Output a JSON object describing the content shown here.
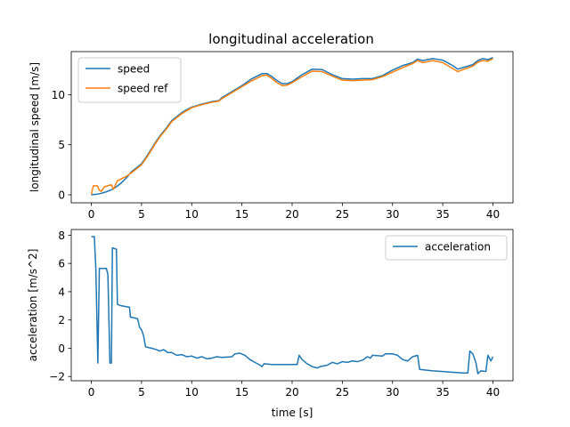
{
  "chart_data": [
    {
      "type": "line",
      "title": "longitudinal acceleration",
      "xlabel": "time [s]",
      "ylabel": "longitudinal speed [m/s]",
      "xlim": [
        -2,
        42
      ],
      "ylim": [
        -0.8,
        14.3
      ],
      "xticks": [
        0,
        5,
        10,
        15,
        20,
        25,
        30,
        35,
        40
      ],
      "yticks": [
        0,
        5,
        10
      ],
      "grid": false,
      "legend": "top-left",
      "series": [
        {
          "name": "speed",
          "color": "#1f77b4",
          "points": [
            [
              0,
              0
            ],
            [
              0.5,
              0.05
            ],
            [
              1,
              0.15
            ],
            [
              1.5,
              0.3
            ],
            [
              2,
              0.5
            ],
            [
              2.5,
              0.8
            ],
            [
              3,
              1.2
            ],
            [
              3.5,
              1.7
            ],
            [
              4,
              2.3
            ],
            [
              4.5,
              2.7
            ],
            [
              5,
              3.1
            ],
            [
              5.5,
              3.8
            ],
            [
              6,
              4.6
            ],
            [
              6.5,
              5.4
            ],
            [
              7,
              6.1
            ],
            [
              7.5,
              6.7
            ],
            [
              8,
              7.4
            ],
            [
              8.5,
              7.8
            ],
            [
              9,
              8.2
            ],
            [
              9.5,
              8.5
            ],
            [
              10,
              8.75
            ],
            [
              11,
              9.05
            ],
            [
              12,
              9.3
            ],
            [
              12.7,
              9.4
            ],
            [
              13,
              9.7
            ],
            [
              14,
              10.3
            ],
            [
              15,
              10.9
            ],
            [
              16,
              11.6
            ],
            [
              17,
              12.1
            ],
            [
              17.5,
              12.1
            ],
            [
              18,
              11.8
            ],
            [
              18.5,
              11.4
            ],
            [
              19,
              11.1
            ],
            [
              19.5,
              11.1
            ],
            [
              20,
              11.3
            ],
            [
              21,
              12.0
            ],
            [
              22,
              12.55
            ],
            [
              23,
              12.5
            ],
            [
              24,
              12.0
            ],
            [
              25,
              11.6
            ],
            [
              26,
              11.55
            ],
            [
              27,
              11.6
            ],
            [
              28,
              11.6
            ],
            [
              29,
              11.9
            ],
            [
              30,
              12.45
            ],
            [
              31,
              12.9
            ],
            [
              32,
              13.2
            ],
            [
              32.5,
              13.55
            ],
            [
              33,
              13.4
            ],
            [
              34,
              13.6
            ],
            [
              35,
              13.45
            ],
            [
              36,
              12.9
            ],
            [
              36.5,
              12.55
            ],
            [
              37,
              12.7
            ],
            [
              38,
              13.0
            ],
            [
              38.5,
              13.4
            ],
            [
              39,
              13.6
            ],
            [
              39.5,
              13.5
            ],
            [
              40,
              13.7
            ]
          ]
        },
        {
          "name": "speed ref",
          "color": "#ff7f0e",
          "points": [
            [
              0,
              0.05
            ],
            [
              0.2,
              0.9
            ],
            [
              0.6,
              0.9
            ],
            [
              0.8,
              0.45
            ],
            [
              1,
              0.35
            ],
            [
              1.3,
              0.8
            ],
            [
              1.6,
              0.9
            ],
            [
              2,
              1.0
            ],
            [
              2.2,
              0.55
            ],
            [
              2.6,
              1.4
            ],
            [
              3,
              1.6
            ],
            [
              3.5,
              1.85
            ],
            [
              4,
              2.2
            ],
            [
              4.5,
              2.6
            ],
            [
              5,
              3.0
            ],
            [
              5.5,
              3.7
            ],
            [
              6,
              4.5
            ],
            [
              6.5,
              5.3
            ],
            [
              7,
              6.0
            ],
            [
              7.5,
              6.6
            ],
            [
              8,
              7.3
            ],
            [
              8.5,
              7.7
            ],
            [
              9,
              8.1
            ],
            [
              9.5,
              8.4
            ],
            [
              10,
              8.7
            ],
            [
              11,
              9.0
            ],
            [
              12,
              9.25
            ],
            [
              12.7,
              9.35
            ],
            [
              13,
              9.6
            ],
            [
              14,
              10.2
            ],
            [
              15,
              10.8
            ],
            [
              16,
              11.4
            ],
            [
              17,
              11.9
            ],
            [
              17.5,
              11.95
            ],
            [
              18,
              11.6
            ],
            [
              18.5,
              11.2
            ],
            [
              19,
              10.9
            ],
            [
              19.5,
              10.95
            ],
            [
              20,
              11.2
            ],
            [
              21,
              11.8
            ],
            [
              22,
              12.35
            ],
            [
              23,
              12.3
            ],
            [
              24,
              11.85
            ],
            [
              25,
              11.45
            ],
            [
              26,
              11.4
            ],
            [
              27,
              11.45
            ],
            [
              28,
              11.5
            ],
            [
              29,
              11.8
            ],
            [
              30,
              12.25
            ],
            [
              31,
              12.7
            ],
            [
              32,
              13.1
            ],
            [
              32.5,
              13.4
            ],
            [
              33,
              13.2
            ],
            [
              34,
              13.4
            ],
            [
              35,
              13.2
            ],
            [
              36,
              12.6
            ],
            [
              36.5,
              12.3
            ],
            [
              37,
              12.5
            ],
            [
              38,
              12.85
            ],
            [
              38.5,
              13.25
            ],
            [
              39,
              13.4
            ],
            [
              39.5,
              13.35
            ],
            [
              40,
              13.6
            ]
          ]
        }
      ]
    },
    {
      "type": "line",
      "xlabel": "time [s]",
      "ylabel": "acceleration [m/s^2]",
      "xlim": [
        -2,
        42
      ],
      "ylim": [
        -2.3,
        8.4
      ],
      "xticks": [
        0,
        5,
        10,
        15,
        20,
        25,
        30,
        35,
        40
      ],
      "yticks": [
        -2,
        0,
        2,
        4,
        6,
        8
      ],
      "grid": false,
      "legend": "top-right",
      "series": [
        {
          "name": "acceleration",
          "color": "#1f77b4",
          "points": [
            [
              0,
              7.9
            ],
            [
              0.3,
              7.9
            ],
            [
              0.45,
              5.6
            ],
            [
              0.65,
              -1.05
            ],
            [
              0.8,
              5.65
            ],
            [
              1.5,
              5.65
            ],
            [
              1.65,
              5.2
            ],
            [
              1.85,
              -1.05
            ],
            [
              2.0,
              -1.05
            ],
            [
              2.1,
              7.1
            ],
            [
              2.5,
              7.0
            ],
            [
              2.6,
              3.1
            ],
            [
              3.0,
              3.0
            ],
            [
              3.8,
              2.9
            ],
            [
              3.9,
              2.2
            ],
            [
              4.6,
              2.1
            ],
            [
              4.8,
              1.5
            ],
            [
              5.0,
              1.3
            ],
            [
              5.2,
              0.9
            ],
            [
              5.4,
              0.1
            ],
            [
              6.0,
              0.0
            ],
            [
              6.5,
              -0.1
            ],
            [
              6.8,
              -0.2
            ],
            [
              7.2,
              -0.1
            ],
            [
              7.6,
              -0.3
            ],
            [
              8,
              -0.3
            ],
            [
              8.5,
              -0.5
            ],
            [
              9,
              -0.45
            ],
            [
              9.5,
              -0.6
            ],
            [
              10,
              -0.55
            ],
            [
              10.5,
              -0.7
            ],
            [
              11,
              -0.6
            ],
            [
              11.5,
              -0.75
            ],
            [
              12,
              -0.7
            ],
            [
              12.5,
              -0.6
            ],
            [
              13,
              -0.65
            ],
            [
              14,
              -0.6
            ],
            [
              14.3,
              -0.4
            ],
            [
              14.8,
              -0.35
            ],
            [
              15.3,
              -0.5
            ],
            [
              15.8,
              -0.8
            ],
            [
              16.3,
              -1.0
            ],
            [
              16.8,
              -1.2
            ],
            [
              17,
              -1.3
            ],
            [
              17.2,
              -1.1
            ],
            [
              18,
              -1.15
            ],
            [
              19,
              -1.15
            ],
            [
              20,
              -1.15
            ],
            [
              20.5,
              -1.15
            ],
            [
              20.7,
              -0.5
            ],
            [
              21,
              -0.8
            ],
            [
              21.5,
              -1.1
            ],
            [
              22,
              -1.3
            ],
            [
              22.5,
              -1.4
            ],
            [
              22.8,
              -1.3
            ],
            [
              23.5,
              -1.2
            ],
            [
              24,
              -1.0
            ],
            [
              24.5,
              -1.1
            ],
            [
              25,
              -0.95
            ],
            [
              25.5,
              -1.0
            ],
            [
              26,
              -0.9
            ],
            [
              26.5,
              -0.95
            ],
            [
              27,
              -0.85
            ],
            [
              27.5,
              -0.6
            ],
            [
              27.8,
              -0.7
            ],
            [
              28,
              -0.5
            ],
            [
              29,
              -0.55
            ],
            [
              29.3,
              -0.4
            ],
            [
              30,
              -0.4
            ],
            [
              30.5,
              -0.5
            ],
            [
              31,
              -0.8
            ],
            [
              31.5,
              -0.9
            ],
            [
              32,
              -0.6
            ],
            [
              32.5,
              -0.5
            ],
            [
              32.7,
              -1.5
            ],
            [
              34,
              -1.6
            ],
            [
              35,
              -1.65
            ],
            [
              36,
              -1.7
            ],
            [
              37,
              -1.75
            ],
            [
              37.5,
              -1.75
            ],
            [
              37.7,
              -0.2
            ],
            [
              38,
              -0.4
            ],
            [
              38.3,
              -1.0
            ],
            [
              38.5,
              -1.8
            ],
            [
              38.8,
              -1.6
            ],
            [
              39.3,
              -1.65
            ],
            [
              39.5,
              -0.5
            ],
            [
              39.8,
              -0.9
            ],
            [
              40,
              -0.6
            ]
          ]
        }
      ]
    }
  ]
}
